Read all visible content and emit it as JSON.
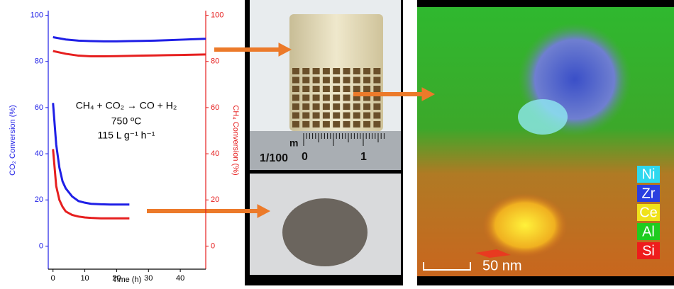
{
  "chart_data": {
    "type": "line",
    "xlabel": "Time (h)",
    "ylabel": "CO₂ Conversion (%)",
    "y2label": "CH₄ Conversion (%)",
    "annotations": [
      "CH₄ + CO₂ → CO + H₂",
      "750 ºC",
      "115 L g⁻¹ h⁻¹"
    ],
    "xlim": [
      -1.5,
      48
    ],
    "xticks": [
      0,
      10,
      20,
      30,
      40
    ],
    "ylim": [
      -10,
      102
    ],
    "yticks": [
      0,
      20,
      40,
      60,
      80,
      100
    ],
    "ycolor": "#1f1fe6",
    "y2lim": [
      -10,
      102
    ],
    "y2ticks": [
      0,
      20,
      40,
      60,
      80,
      100
    ],
    "y2color": "#e61f1f",
    "series": [
      {
        "color": "#1f1fe6",
        "x": [
          0,
          4,
          8,
          12,
          16,
          20,
          24,
          28,
          32,
          36,
          40,
          44,
          48
        ],
        "values": [
          90.5,
          89.5,
          89,
          88.8,
          88.7,
          88.7,
          88.8,
          88.9,
          89,
          89.2,
          89.4,
          89.6,
          89.8
        ]
      },
      {
        "color": "#e61f1f",
        "axis": "y2",
        "x": [
          0,
          4,
          8,
          12,
          16,
          20,
          24,
          28,
          32,
          36,
          40,
          44,
          48
        ],
        "values": [
          84.5,
          83.3,
          82.5,
          82.2,
          82.2,
          82.3,
          82.4,
          82.5,
          82.6,
          82.7,
          82.8,
          82.9,
          83
        ]
      },
      {
        "color": "#1f1fe6",
        "x": [
          0,
          1,
          2,
          3,
          4,
          6,
          8,
          10,
          12,
          15,
          18,
          21,
          24
        ],
        "values": [
          62,
          44,
          34,
          28,
          25,
          21.5,
          19.5,
          18.8,
          18.3,
          18.1,
          18,
          18,
          18
        ]
      },
      {
        "color": "#e61f1f",
        "axis": "y2",
        "x": [
          0,
          1,
          2,
          3,
          4,
          6,
          8,
          10,
          12,
          15,
          18,
          21,
          24
        ],
        "values": [
          42,
          26,
          20,
          17,
          15,
          13.5,
          12.8,
          12.4,
          12.2,
          12,
          12,
          12,
          12
        ]
      }
    ]
  },
  "ruler": {
    "unit": "m",
    "fraction": "1/100",
    "labels": [
      "0",
      "1"
    ]
  },
  "eds": {
    "elements": [
      {
        "label": "Ni",
        "color": "#2fd8ef"
      },
      {
        "label": "Zr",
        "color": "#2a3fe0"
      },
      {
        "label": "Ce",
        "color": "#f0e21a"
      },
      {
        "label": "Al",
        "color": "#1fcc1f"
      },
      {
        "label": "Si",
        "color": "#ee1c1c"
      }
    ],
    "scale_bar": "50 nm"
  }
}
